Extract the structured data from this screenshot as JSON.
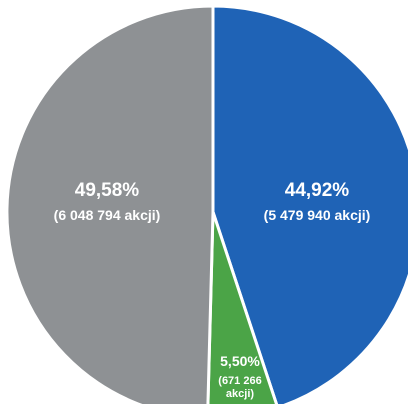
{
  "chart_data": {
    "type": "pie",
    "slices": [
      {
        "value": 44.92,
        "label": "44,92%",
        "detail": [
          "(5 479 940 akcji)"
        ],
        "color": "#1f63b6"
      },
      {
        "value": 5.5,
        "label": "5,50%",
        "detail": [
          "(671 266",
          "akcji)"
        ],
        "color": "#4ba447"
      },
      {
        "value": 49.58,
        "label": "49,58%",
        "detail": [
          "(6 048 794 akcji)"
        ],
        "color": "#8e9194"
      }
    ]
  }
}
